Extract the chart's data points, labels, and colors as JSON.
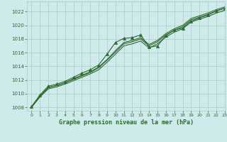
{
  "title": "Graphe pression niveau de la mer (hPa)",
  "background_color": "#ceeaea",
  "grid_color": "#aec8c8",
  "line_color": "#2d6a2d",
  "xlim": [
    -0.5,
    23
  ],
  "ylim": [
    1007.5,
    1023.5
  ],
  "yticks": [
    1008,
    1010,
    1012,
    1014,
    1016,
    1018,
    1020,
    1022
  ],
  "xticks": [
    0,
    1,
    2,
    3,
    4,
    5,
    6,
    7,
    8,
    9,
    10,
    11,
    12,
    13,
    14,
    15,
    16,
    17,
    18,
    19,
    20,
    21,
    22,
    23
  ],
  "series": [
    [
      1008.1,
      1009.8,
      1011.1,
      1011.4,
      1011.8,
      1012.4,
      1013.0,
      1013.5,
      1014.2,
      1015.8,
      1017.5,
      1018.1,
      1018.2,
      1018.6,
      1016.8,
      1017.0,
      1018.5,
      1019.3,
      1019.6,
      1020.6,
      1021.1,
      1021.5,
      1022.1,
      1022.5
    ],
    [
      1008.0,
      1009.6,
      1010.9,
      1011.2,
      1011.6,
      1012.2,
      1012.7,
      1013.2,
      1013.9,
      1015.0,
      1016.3,
      1017.5,
      1017.8,
      1018.2,
      1017.2,
      1017.8,
      1018.8,
      1019.5,
      1020.0,
      1021.0,
      1021.4,
      1021.8,
      1022.3,
      1022.7
    ],
    [
      1008.0,
      1009.6,
      1010.9,
      1011.2,
      1011.6,
      1012.1,
      1012.6,
      1013.1,
      1013.8,
      1014.9,
      1016.1,
      1017.3,
      1017.6,
      1018.0,
      1017.0,
      1017.6,
      1018.6,
      1019.3,
      1019.8,
      1020.8,
      1021.2,
      1021.6,
      1022.1,
      1022.5
    ],
    [
      1008.0,
      1009.5,
      1010.7,
      1011.0,
      1011.4,
      1011.9,
      1012.4,
      1012.9,
      1013.5,
      1014.6,
      1015.8,
      1017.0,
      1017.3,
      1017.7,
      1016.7,
      1017.3,
      1018.3,
      1019.0,
      1019.5,
      1020.5,
      1020.9,
      1021.3,
      1021.8,
      1022.2
    ]
  ],
  "marker_series": [
    0
  ],
  "no_marker_series": [
    1,
    2,
    3
  ],
  "marker": "^",
  "marker_size": 3,
  "linewidth": 0.8
}
